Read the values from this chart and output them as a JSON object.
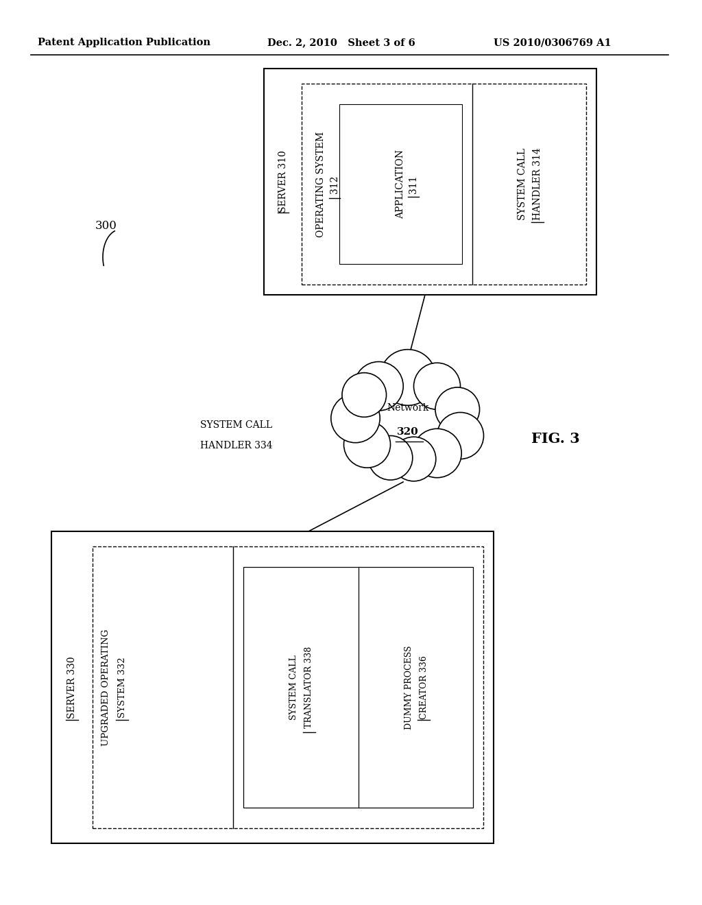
{
  "bg_color": "#ffffff",
  "header_left": "Patent Application Publication",
  "header_mid": "Dec. 2, 2010   Sheet 3 of 6",
  "header_right": "US 2010/0306769 A1",
  "fig_label": "FIG. 3",
  "diagram_label": "300"
}
